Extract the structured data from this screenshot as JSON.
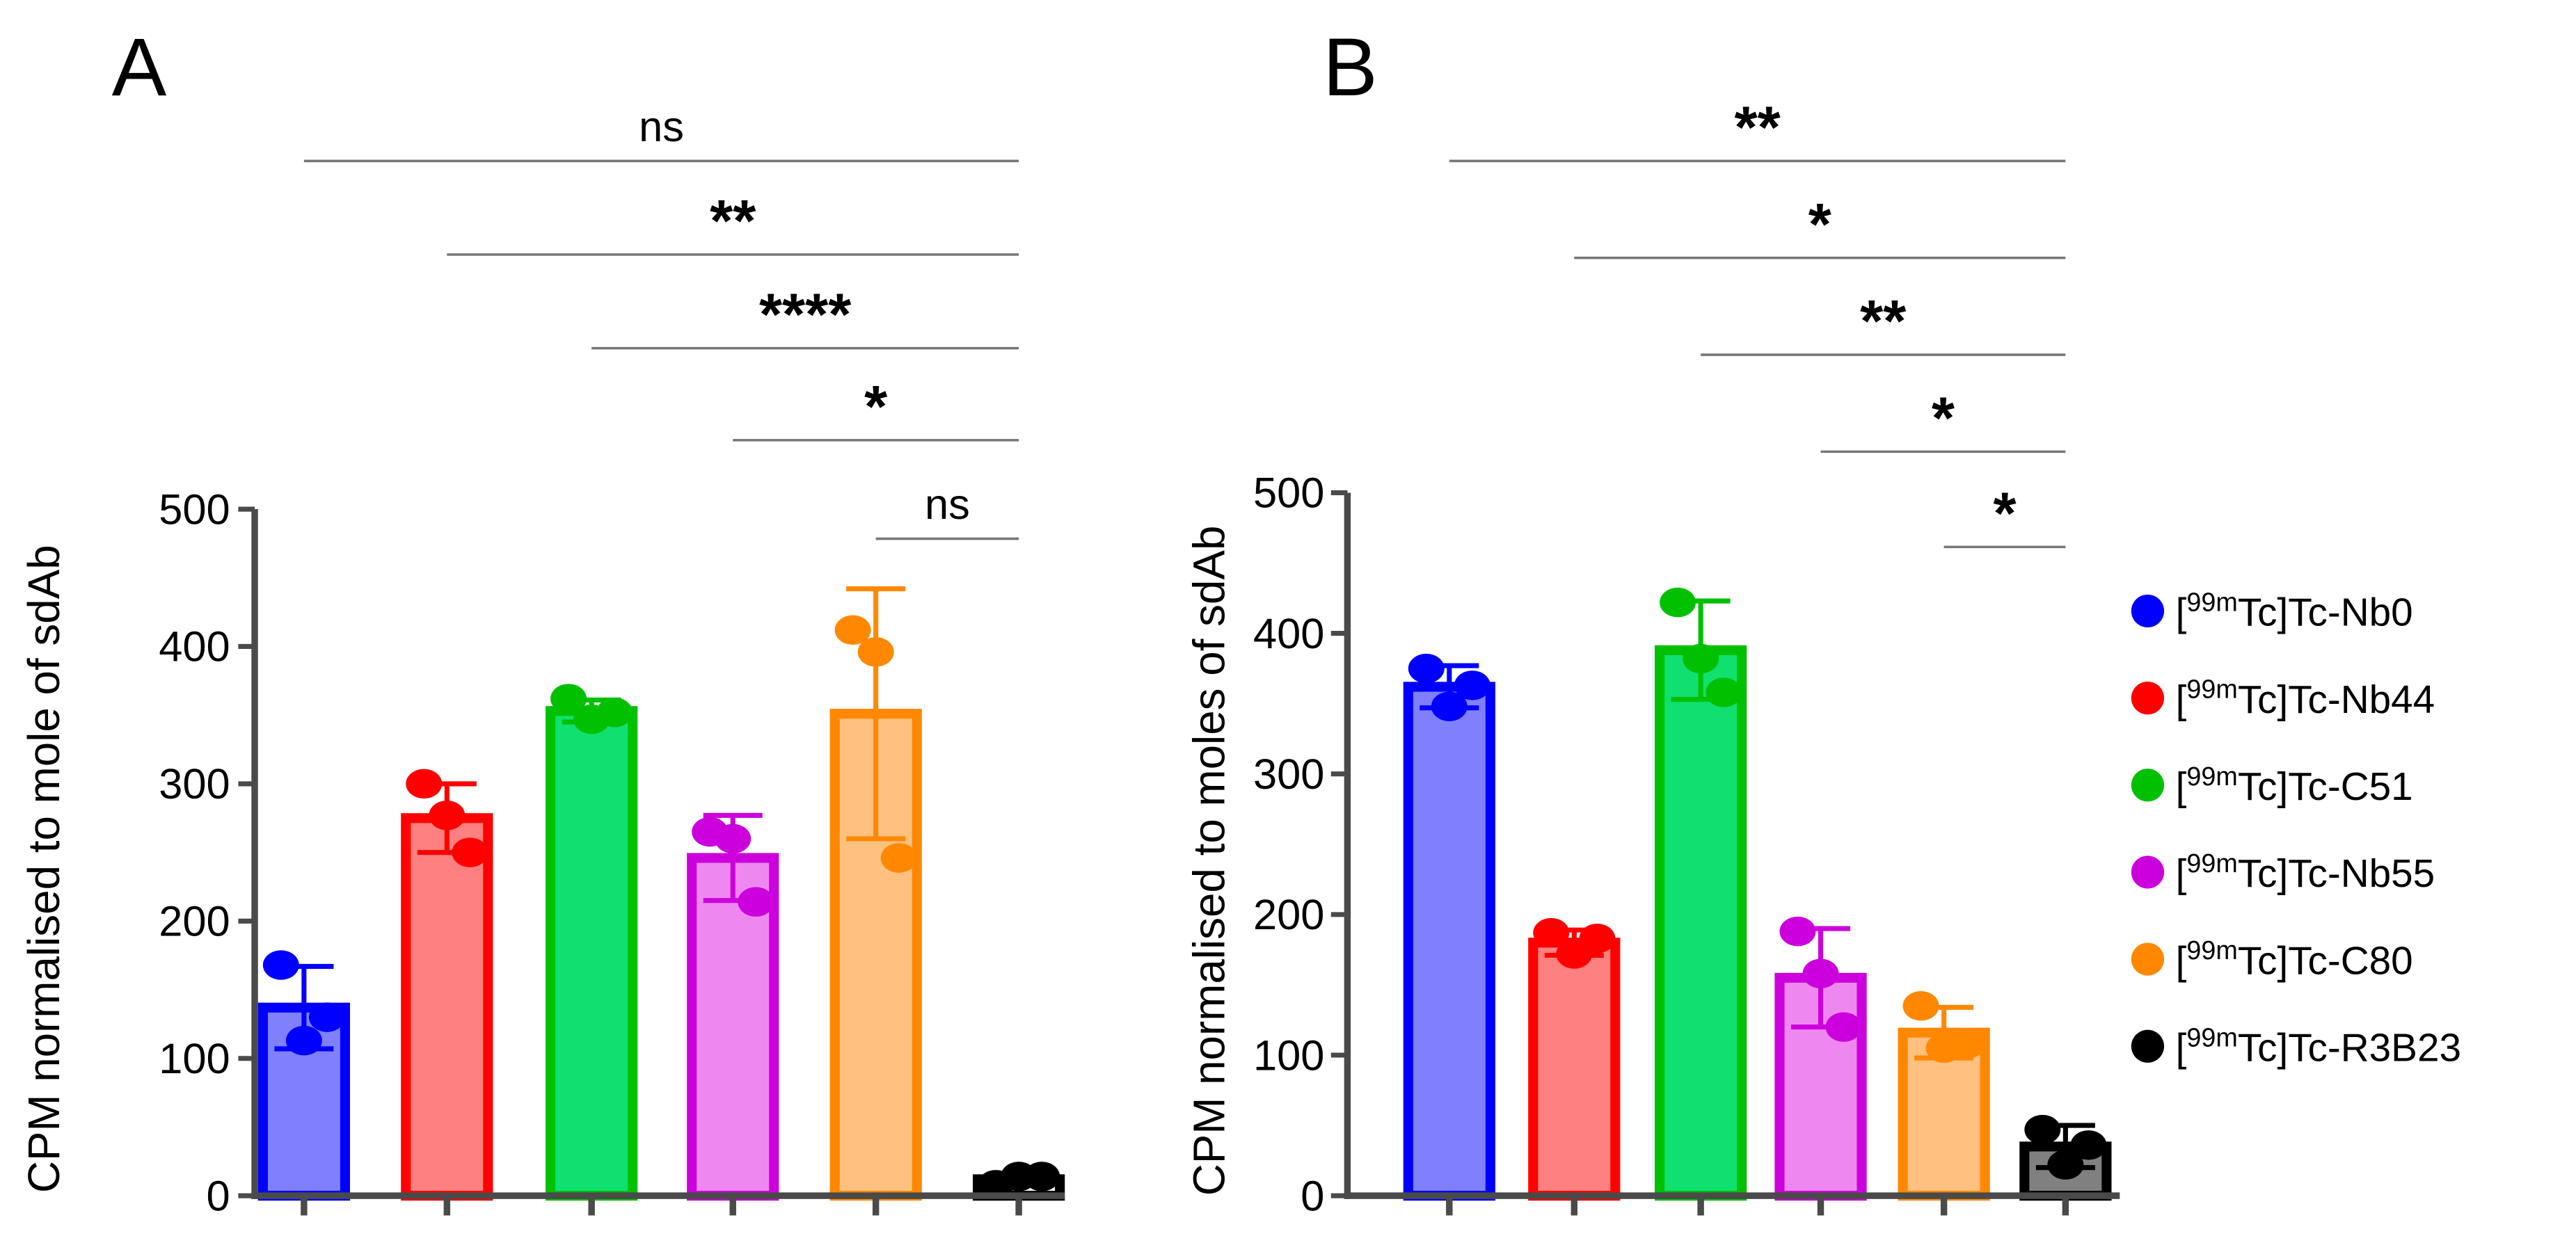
{
  "legend": [
    {
      "sup": "99m",
      "pre": "[",
      "post": "Tc]Tc-Nb0",
      "color": "#0000ff",
      "fill": "#8080ff"
    },
    {
      "sup": "99m",
      "pre": "[",
      "post": "Tc]Tc-Nb44",
      "color": "#ff0000",
      "fill": "#ff8080"
    },
    {
      "sup": "99m",
      "pre": "[",
      "post": "Tc]Tc-C51",
      "color": "#00c000",
      "fill": "#10e070"
    },
    {
      "sup": "99m",
      "pre": "[",
      "post": "Tc]Tc-Nb55",
      "color": "#cc00dd",
      "fill": "#ee88f0"
    },
    {
      "sup": "99m",
      "pre": "[",
      "post": "Tc]Tc-C80",
      "color": "#ff8800",
      "fill": "#ffc080"
    },
    {
      "sup": "99m",
      "pre": "[",
      "post": "Tc]Tc-R3B23",
      "color": "#000000",
      "fill": "#808080"
    }
  ],
  "chart_data": [
    {
      "panel": "A",
      "type": "bar",
      "ylabel": "CPM normalised to mole of sdAb",
      "ylim": [
        0,
        500
      ],
      "yticks": [
        0,
        100,
        200,
        300,
        400,
        500
      ],
      "categories": [
        "[99mTc]Tc-Nb0",
        "[99mTc]Tc-Nb44",
        "[99mTc]Tc-C51",
        "[99mTc]Tc-Nb55",
        "[99mTc]Tc-C80",
        "[99mTc]Tc-R3B23"
      ],
      "means": [
        137,
        275,
        353,
        246,
        351,
        12
      ],
      "sd": [
        30,
        25,
        8,
        31,
        91,
        4
      ],
      "points": [
        [
          168,
          113,
          130
        ],
        [
          300,
          277,
          250
        ],
        [
          362,
          347,
          352
        ],
        [
          265,
          260,
          214
        ],
        [
          412,
          396,
          246
        ],
        [
          8,
          14,
          14
        ]
      ],
      "last_bar_filled": false,
      "significance": [
        {
          "from": 0,
          "to": 5,
          "label": "ns"
        },
        {
          "from": 1,
          "to": 5,
          "label": "**"
        },
        {
          "from": 2,
          "to": 5,
          "label": "****"
        },
        {
          "from": 3,
          "to": 5,
          "label": "*"
        },
        {
          "from": 4,
          "to": 5,
          "label": "ns"
        }
      ]
    },
    {
      "panel": "B",
      "type": "bar",
      "ylabel": "CPM normalised to moles of sdAb",
      "ylim": [
        0,
        500
      ],
      "yticks": [
        0,
        100,
        200,
        300,
        400,
        500
      ],
      "categories": [
        "[99mTc]Tc-Nb0",
        "[99mTc]Tc-Nb44",
        "[99mTc]Tc-C51",
        "[99mTc]Tc-Nb55",
        "[99mTc]Tc-C80",
        "[99mTc]Tc-R3B23"
      ],
      "means": [
        362,
        180,
        388,
        155,
        116,
        35
      ],
      "sd": [
        15,
        9,
        35,
        35,
        18,
        15
      ],
      "points": [
        [
          375,
          348,
          363
        ],
        [
          187,
          172,
          183
        ],
        [
          422,
          382,
          358
        ],
        [
          188,
          158,
          120
        ],
        [
          135,
          105,
          108
        ],
        [
          47,
          22,
          36
        ]
      ],
      "last_bar_filled": true,
      "significance": [
        {
          "from": 0,
          "to": 5,
          "label": "**"
        },
        {
          "from": 1,
          "to": 5,
          "label": "*"
        },
        {
          "from": 2,
          "to": 5,
          "label": "**"
        },
        {
          "from": 3,
          "to": 5,
          "label": "*"
        },
        {
          "from": 4,
          "to": 5,
          "label": "*"
        }
      ]
    }
  ]
}
